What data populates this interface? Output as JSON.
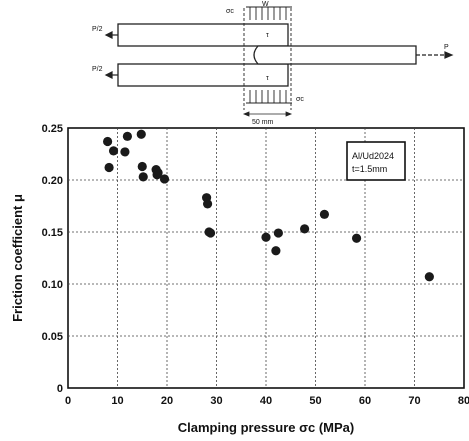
{
  "schematic": {
    "upper_load_label": "P/2",
    "lower_load_label": "P/2",
    "clamp_label_top": "σc",
    "clamp_label_bottom": "σc",
    "tau_label": "τ",
    "pull_label": "P",
    "width_label": "W",
    "grip_length_label": "50 mm"
  },
  "chart_data": {
    "type": "scatter",
    "title": "",
    "xlabel": "Clamping pressure σc (MPa)",
    "ylabel": "Friction coefficient μ",
    "xlim": [
      0,
      80
    ],
    "ylim": [
      0,
      0.25
    ],
    "x_ticks": [
      "0",
      "10",
      "20",
      "30",
      "40",
      "50",
      "60",
      "70",
      "80"
    ],
    "y_ticks": [
      "0",
      "0.05",
      "0.10",
      "0.15",
      "0.20",
      "0.25"
    ],
    "grid": true,
    "legend_lines": [
      "Al/Ud2024",
      "t=1.5mm"
    ],
    "legend_position": "top-right",
    "marker_color": "#1a1a1a",
    "points": [
      [
        8.0,
        0.237
      ],
      [
        8.3,
        0.212
      ],
      [
        9.2,
        0.228
      ],
      [
        11.5,
        0.227
      ],
      [
        12.0,
        0.242
      ],
      [
        14.8,
        0.244
      ],
      [
        15.0,
        0.213
      ],
      [
        15.2,
        0.203
      ],
      [
        17.8,
        0.21
      ],
      [
        18.0,
        0.205
      ],
      [
        18.2,
        0.207
      ],
      [
        19.5,
        0.201
      ],
      [
        28.0,
        0.183
      ],
      [
        28.2,
        0.177
      ],
      [
        28.5,
        0.15
      ],
      [
        28.8,
        0.149
      ],
      [
        40.0,
        0.145
      ],
      [
        42.0,
        0.132
      ],
      [
        42.5,
        0.149
      ],
      [
        47.8,
        0.153
      ],
      [
        51.8,
        0.167
      ],
      [
        58.3,
        0.144
      ],
      [
        73.0,
        0.107
      ]
    ]
  }
}
